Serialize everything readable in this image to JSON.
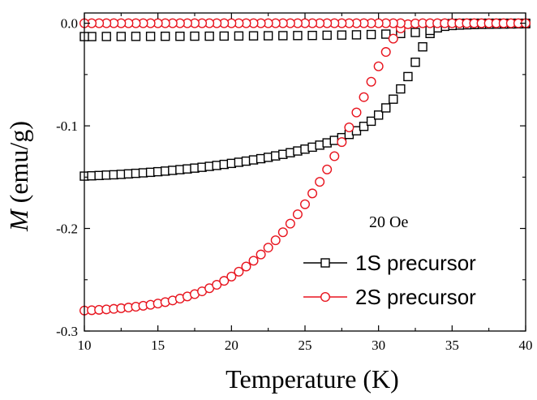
{
  "chart_data": {
    "type": "scatter",
    "title": "",
    "xlabel": "Temperature (K)",
    "ylabel_symbol": "M",
    "ylabel_unit": " (emu/g)",
    "xlim": [
      10,
      40
    ],
    "ylim": [
      -0.3,
      0.01
    ],
    "xticks": [
      10,
      15,
      20,
      25,
      30,
      35,
      40
    ],
    "xtick_labels": [
      "10",
      "15",
      "20",
      "25",
      "30",
      "35",
      "40"
    ],
    "yticks": [
      0.0,
      -0.1,
      -0.2,
      -0.3
    ],
    "ytick_labels": [
      "0.0",
      "-0.1",
      "-0.2",
      "-0.3"
    ],
    "annotation": "20 Oe",
    "legend_position": "bottom-right",
    "series": [
      {
        "name": "1S precursor",
        "marker": "square",
        "color": "#000000",
        "points": [
          [
            10.0,
            -0.149
          ],
          [
            10.5,
            -0.1487
          ],
          [
            11.0,
            -0.1484
          ],
          [
            11.5,
            -0.148
          ],
          [
            12.0,
            -0.1477
          ],
          [
            12.5,
            -0.1473
          ],
          [
            13.0,
            -0.1468
          ],
          [
            13.5,
            -0.1463
          ],
          [
            14.0,
            -0.1458
          ],
          [
            14.5,
            -0.1453
          ],
          [
            15.0,
            -0.1447
          ],
          [
            15.5,
            -0.1441
          ],
          [
            16.0,
            -0.1434
          ],
          [
            16.5,
            -0.1427
          ],
          [
            17.0,
            -0.142
          ],
          [
            17.5,
            -0.1412
          ],
          [
            18.0,
            -0.1404
          ],
          [
            18.5,
            -0.1395
          ],
          [
            19.0,
            -0.1386
          ],
          [
            19.5,
            -0.1376
          ],
          [
            20.0,
            -0.1366
          ],
          [
            20.5,
            -0.1355
          ],
          [
            21.0,
            -0.1344
          ],
          [
            21.5,
            -0.1332
          ],
          [
            22.0,
            -0.132
          ],
          [
            22.5,
            -0.1307
          ],
          [
            23.0,
            -0.1293
          ],
          [
            23.5,
            -0.1278
          ],
          [
            24.0,
            -0.1262
          ],
          [
            24.5,
            -0.1245
          ],
          [
            25.0,
            -0.1227
          ],
          [
            25.5,
            -0.1208
          ],
          [
            26.0,
            -0.1188
          ],
          [
            26.5,
            -0.1166
          ],
          [
            27.0,
            -0.1142
          ],
          [
            27.5,
            -0.1115
          ],
          [
            28.0,
            -0.1084
          ],
          [
            28.5,
            -0.1048
          ],
          [
            29.0,
            -0.1005
          ],
          [
            29.5,
            -0.0955
          ],
          [
            30.0,
            -0.0895
          ],
          [
            30.5,
            -0.0825
          ],
          [
            31.0,
            -0.074
          ],
          [
            31.5,
            -0.064
          ],
          [
            32.0,
            -0.052
          ],
          [
            32.5,
            -0.038
          ],
          [
            33.0,
            -0.023
          ],
          [
            33.5,
            -0.01
          ],
          [
            34.0,
            -0.003
          ],
          [
            34.5,
            -0.0008
          ],
          [
            35.0,
            -0.0003
          ],
          [
            35.5,
            -0.0001
          ],
          [
            36.0,
            0.0
          ],
          [
            36.5,
            0.0
          ],
          [
            37.0,
            0.0
          ],
          [
            37.5,
            0.0
          ],
          [
            38.0,
            0.0
          ],
          [
            38.5,
            0.0
          ],
          [
            39.0,
            0.0
          ],
          [
            39.5,
            0.0
          ],
          [
            40.0,
            0.0
          ],
          [
            40.0,
            -0.0005
          ],
          [
            39.5,
            -0.0006
          ],
          [
            39.0,
            -0.0007
          ],
          [
            38.5,
            -0.0008
          ],
          [
            38.0,
            -0.0009
          ],
          [
            37.5,
            -0.001
          ],
          [
            37.0,
            -0.0011
          ],
          [
            36.5,
            -0.0013
          ],
          [
            36.0,
            -0.0015
          ],
          [
            35.5,
            -0.0018
          ],
          [
            35.0,
            -0.0022
          ],
          [
            34.5,
            -0.003
          ],
          [
            34.0,
            -0.0045
          ],
          [
            33.5,
            -0.007
          ],
          [
            32.5,
            -0.009
          ],
          [
            31.5,
            -0.01
          ],
          [
            30.5,
            -0.0106
          ],
          [
            29.5,
            -0.011
          ],
          [
            28.5,
            -0.0113
          ],
          [
            27.5,
            -0.0115
          ],
          [
            26.5,
            -0.0117
          ],
          [
            25.5,
            -0.0119
          ],
          [
            24.5,
            -0.012
          ],
          [
            23.5,
            -0.0121
          ],
          [
            22.5,
            -0.0122
          ],
          [
            21.5,
            -0.0123
          ],
          [
            20.5,
            -0.0124
          ],
          [
            19.5,
            -0.0125
          ],
          [
            18.5,
            -0.0126
          ],
          [
            17.5,
            -0.0126
          ],
          [
            16.5,
            -0.0127
          ],
          [
            15.5,
            -0.0127
          ],
          [
            14.5,
            -0.0128
          ],
          [
            13.5,
            -0.0128
          ],
          [
            12.5,
            -0.0129
          ],
          [
            11.5,
            -0.0129
          ],
          [
            10.5,
            -0.013
          ],
          [
            10.0,
            -0.013
          ]
        ]
      },
      {
        "name": "2S precursor",
        "marker": "circle",
        "color": "#e8141e",
        "points": [
          [
            10.0,
            -0.28
          ],
          [
            10.5,
            -0.2797
          ],
          [
            11.0,
            -0.2793
          ],
          [
            11.5,
            -0.2789
          ],
          [
            12.0,
            -0.2784
          ],
          [
            12.5,
            -0.2778
          ],
          [
            13.0,
            -0.2771
          ],
          [
            13.5,
            -0.2763
          ],
          [
            14.0,
            -0.2754
          ],
          [
            14.5,
            -0.2744
          ],
          [
            15.0,
            -0.2732
          ],
          [
            15.5,
            -0.2718
          ],
          [
            16.0,
            -0.2702
          ],
          [
            16.5,
            -0.2684
          ],
          [
            17.0,
            -0.2663
          ],
          [
            17.5,
            -0.264
          ],
          [
            18.0,
            -0.2613
          ],
          [
            18.5,
            -0.2583
          ],
          [
            19.0,
            -0.2549
          ],
          [
            19.5,
            -0.2511
          ],
          [
            20.0,
            -0.2469
          ],
          [
            20.5,
            -0.2422
          ],
          [
            21.0,
            -0.2371
          ],
          [
            21.5,
            -0.2315
          ],
          [
            22.0,
            -0.2254
          ],
          [
            22.5,
            -0.2187
          ],
          [
            23.0,
            -0.2115
          ],
          [
            23.5,
            -0.2037
          ],
          [
            24.0,
            -0.1953
          ],
          [
            24.5,
            -0.1862
          ],
          [
            25.0,
            -0.1764
          ],
          [
            25.5,
            -0.1659
          ],
          [
            26.0,
            -0.1546
          ],
          [
            26.5,
            -0.1425
          ],
          [
            27.0,
            -0.1296
          ],
          [
            27.5,
            -0.1158
          ],
          [
            28.0,
            -0.1015
          ],
          [
            28.5,
            -0.087
          ],
          [
            29.0,
            -0.072
          ],
          [
            29.5,
            -0.057
          ],
          [
            30.0,
            -0.042
          ],
          [
            30.5,
            -0.028
          ],
          [
            31.0,
            -0.015
          ],
          [
            31.5,
            -0.005
          ],
          [
            32.0,
            -0.001
          ],
          [
            32.5,
            -0.0002
          ],
          [
            33.0,
            0.0
          ],
          [
            33.5,
            0.0
          ],
          [
            34.0,
            0.0
          ],
          [
            34.5,
            0.0
          ],
          [
            35.0,
            0.0
          ],
          [
            35.5,
            0.0
          ],
          [
            36.0,
            0.0
          ],
          [
            36.5,
            0.0
          ],
          [
            37.0,
            0.0
          ],
          [
            37.5,
            0.0
          ],
          [
            38.0,
            0.0
          ],
          [
            38.5,
            0.0
          ],
          [
            39.0,
            0.0
          ],
          [
            39.5,
            0.0
          ],
          [
            40.0,
            0.0
          ],
          [
            31.5,
            0.0
          ],
          [
            31.0,
            0.0
          ],
          [
            30.5,
            0.0
          ],
          [
            30.0,
            0.0
          ],
          [
            29.5,
            0.0
          ],
          [
            29.0,
            0.0
          ],
          [
            28.5,
            0.0
          ],
          [
            28.0,
            0.0
          ],
          [
            27.5,
            0.0
          ],
          [
            27.0,
            0.0
          ],
          [
            26.5,
            0.0
          ],
          [
            26.0,
            0.0
          ],
          [
            25.5,
            0.0
          ],
          [
            25.0,
            0.0
          ],
          [
            24.5,
            0.0
          ],
          [
            24.0,
            0.0
          ],
          [
            23.5,
            0.0
          ],
          [
            23.0,
            0.0
          ],
          [
            22.5,
            0.0
          ],
          [
            22.0,
            0.0
          ],
          [
            21.5,
            0.0
          ],
          [
            21.0,
            0.0
          ],
          [
            20.5,
            0.0
          ],
          [
            20.0,
            0.0
          ],
          [
            19.5,
            0.0
          ],
          [
            19.0,
            0.0
          ],
          [
            18.5,
            0.0
          ],
          [
            18.0,
            0.0
          ],
          [
            17.5,
            0.0
          ],
          [
            17.0,
            0.0
          ],
          [
            16.5,
            0.0
          ],
          [
            16.0,
            0.0
          ],
          [
            15.5,
            0.0
          ],
          [
            15.0,
            0.0
          ],
          [
            14.5,
            0.0
          ],
          [
            14.0,
            0.0
          ],
          [
            13.5,
            0.0
          ],
          [
            13.0,
            0.0
          ],
          [
            12.5,
            0.0
          ],
          [
            12.0,
            0.0
          ],
          [
            11.5,
            0.0
          ],
          [
            11.0,
            0.0
          ],
          [
            10.5,
            0.0
          ],
          [
            10.0,
            0.0
          ]
        ]
      }
    ]
  }
}
